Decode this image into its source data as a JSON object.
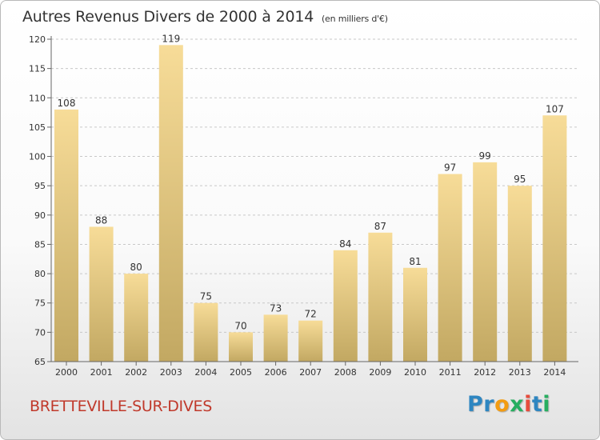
{
  "title": {
    "main": "Autres Revenus Divers de 2000 à 2014",
    "unit": "(en milliers d'€)"
  },
  "commune": "BRETTEVILLE-SUR-DIVES",
  "logo": {
    "letters": [
      "P",
      "r",
      "o",
      "x",
      "i",
      "t",
      "i"
    ],
    "colors": [
      "#2e86c1",
      "#2e86c1",
      "#f39c12",
      "#27ae60",
      "#e74c3c",
      "#2e86c1",
      "#27ae60"
    ]
  },
  "colors": {
    "bar_light": "#f7dc98",
    "bar_dark": "#c2a862",
    "axis": "#666666",
    "grid": "#c8c8c8"
  },
  "chart_data": {
    "type": "bar",
    "categories": [
      "2000",
      "2001",
      "2002",
      "2003",
      "2004",
      "2005",
      "2006",
      "2007",
      "2008",
      "2009",
      "2010",
      "2011",
      "2012",
      "2013",
      "2014"
    ],
    "values": [
      108,
      88,
      80,
      119,
      75,
      70,
      73,
      72,
      84,
      87,
      81,
      97,
      99,
      95,
      107
    ],
    "ylim": [
      65,
      120
    ],
    "yticks": [
      65,
      70,
      75,
      80,
      85,
      90,
      95,
      100,
      105,
      110,
      115,
      120
    ],
    "grid": true,
    "legend": "none"
  }
}
